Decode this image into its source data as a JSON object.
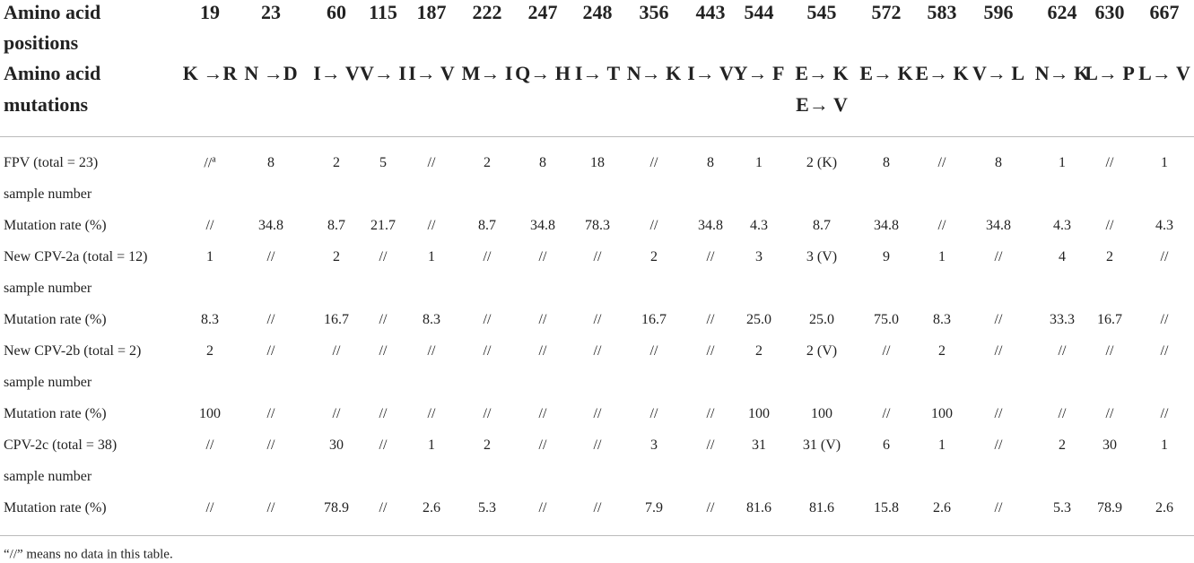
{
  "header": {
    "positions_label": [
      "Amino acid",
      "positions"
    ],
    "positions": [
      "19",
      "23",
      "60",
      "115",
      "187",
      "222",
      "247",
      "248",
      "356",
      "443",
      "544",
      "545",
      "572",
      "583",
      "596",
      "624",
      "630",
      "667"
    ],
    "mutations_label": [
      "Amino acid",
      "mutations"
    ],
    "mutations": [
      [
        "K →R"
      ],
      [
        "N →D"
      ],
      [
        "I→ V"
      ],
      [
        "V→ I"
      ],
      [
        "I→ V"
      ],
      [
        "M→ I"
      ],
      [
        "Q→ H"
      ],
      [
        "I→ T"
      ],
      [
        "N→ K"
      ],
      [
        "I→ V"
      ],
      [
        "Y→ F"
      ],
      [
        "E→ K",
        "E→ V"
      ],
      [
        "E→ K"
      ],
      [
        "E→ K"
      ],
      [
        "V→ L"
      ],
      [
        "N→ K"
      ],
      [
        "L→ P"
      ],
      [
        "L→ V"
      ]
    ]
  },
  "table": {
    "rows": [
      {
        "label": [
          "FPV (total = 23)",
          "sample number"
        ],
        "cells": [
          {
            "text": "//",
            "superscript": "a"
          },
          "8",
          "2",
          "5",
          "//",
          "2",
          "8",
          "18",
          "//",
          "8",
          "1",
          "2 (K)",
          "8",
          "//",
          "8",
          "1",
          "//",
          "1"
        ]
      },
      {
        "label": [
          "Mutation rate (%)"
        ],
        "cells": [
          "//",
          "34.8",
          "8.7",
          "21.7",
          "//",
          "8.7",
          "34.8",
          "78.3",
          "//",
          "34.8",
          "4.3",
          "8.7",
          "34.8",
          "//",
          "34.8",
          "4.3",
          "//",
          "4.3"
        ]
      },
      {
        "label": [
          "New CPV-2a (total = 12)",
          "sample number"
        ],
        "cells": [
          "1",
          "//",
          "2",
          "//",
          "1",
          "//",
          "//",
          "//",
          "2",
          "//",
          "3",
          "3 (V)",
          "9",
          "1",
          "//",
          "4",
          "2",
          "//"
        ]
      },
      {
        "label": [
          "Mutation rate (%)"
        ],
        "cells": [
          "8.3",
          "//",
          "16.7",
          "//",
          "8.3",
          "//",
          "//",
          "//",
          "16.7",
          "//",
          "25.0",
          "25.0",
          "75.0",
          "8.3",
          "//",
          "33.3",
          "16.7",
          "//"
        ]
      },
      {
        "label": [
          "New CPV-2b (total = 2)",
          "sample number"
        ],
        "cells": [
          "2",
          "//",
          "//",
          "//",
          "//",
          "//",
          "//",
          "//",
          "//",
          "//",
          "2",
          "2 (V)",
          "//",
          "2",
          "//",
          "//",
          "//",
          "//"
        ]
      },
      {
        "label": [
          "Mutation rate (%)"
        ],
        "cells": [
          "100",
          "//",
          "//",
          "//",
          "//",
          "//",
          "//",
          "//",
          "//",
          "//",
          "100",
          "100",
          "//",
          "100",
          "//",
          "//",
          "//",
          "//"
        ]
      },
      {
        "label": [
          "CPV-2c (total = 38)",
          "sample number"
        ],
        "cells": [
          "//",
          "//",
          "30",
          "//",
          "1",
          "2",
          "//",
          "//",
          "3",
          "//",
          "31",
          "31 (V)",
          "6",
          "1",
          "//",
          "2",
          "30",
          "1"
        ]
      },
      {
        "label": [
          "Mutation rate (%)"
        ],
        "cells": [
          "//",
          "//",
          "78.9",
          "//",
          "2.6",
          "5.3",
          "//",
          "//",
          "7.9",
          "//",
          "81.6",
          "81.6",
          "15.8",
          "2.6",
          "//",
          "5.3",
          "78.9",
          "2.6"
        ]
      }
    ]
  },
  "footnote": "“//” means no data in this table."
}
